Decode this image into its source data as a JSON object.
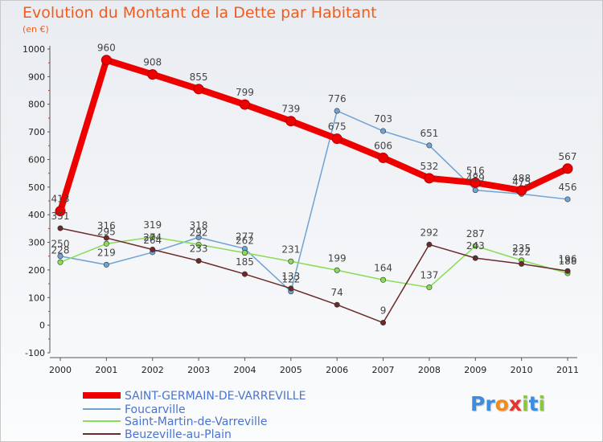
{
  "title": "Evolution du Montant de la Dette par Habitant",
  "subtitle": "(en €)",
  "logo": {
    "text": "Proxiti",
    "letters": [
      "P",
      "r",
      "o",
      "x",
      "i",
      "t",
      "i"
    ],
    "colors": [
      "#3a8de0",
      "#3a8de0",
      "#f28a1c",
      "#e3342f",
      "#8cc63f",
      "#3a8de0",
      "#8cc63f"
    ]
  },
  "chart_data": {
    "type": "line",
    "title": "Evolution du Montant de la Dette par Habitant",
    "ylabel": "(en €)",
    "xlabel": "",
    "x": [
      "2000",
      "2001",
      "2002",
      "2003",
      "2004",
      "2005",
      "2006",
      "2007",
      "2008",
      "2009",
      "2010",
      "2011"
    ],
    "ylim": [
      -100,
      1000
    ],
    "yticks": [
      "-100",
      "0",
      "100",
      "200",
      "300",
      "400",
      "500",
      "600",
      "700",
      "800",
      "900",
      "1000"
    ],
    "grid": false,
    "legend": "bottom-left",
    "series": [
      {
        "name": "SAINT-GERMAIN-DE-VARREVILLE",
        "color": "#ee0000",
        "values": [
          413,
          960,
          908,
          855,
          799,
          739,
          675,
          606,
          532,
          516,
          488,
          567
        ]
      },
      {
        "name": "Foucarville",
        "color": "#6fa3d4",
        "values": [
          250,
          219,
          264,
          318,
          277,
          122,
          776,
          703,
          651,
          489,
          475,
          456
        ]
      },
      {
        "name": "Saint-Martin-de-Varreville",
        "color": "#88dd55",
        "values": [
          228,
          295,
          319,
          292,
          262,
          231,
          199,
          164,
          137,
          287,
          235,
          188
        ]
      },
      {
        "name": "Beuzeville-au-Plain",
        "color": "#6b2a2a",
        "values": [
          351,
          316,
          274,
          233,
          185,
          133,
          74,
          9,
          292,
          243,
          222,
          196
        ]
      }
    ]
  }
}
